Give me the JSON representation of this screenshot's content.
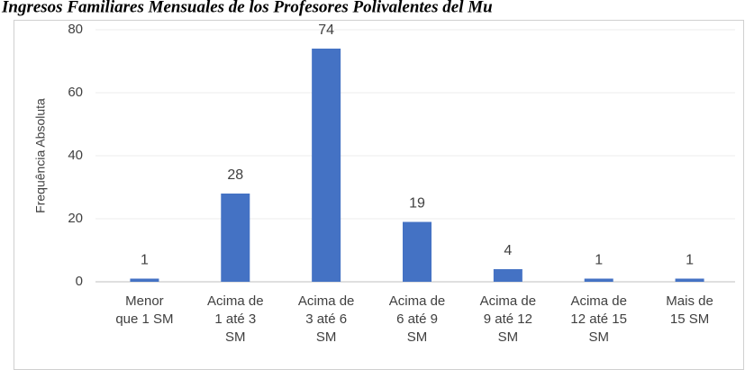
{
  "chart_data": {
    "type": "bar",
    "title": "Ingresos Familiares Mensuales de los Profesores Polivalentes del Mu",
    "ylabel": "Frequência Absoluta",
    "categories": [
      "Menor\nque 1 SM",
      "Acima de\n1 até 3\nSM",
      "Acima de\n3 até 6\nSM",
      "Acima de\n6 até 9\nSM",
      "Acima de\n9 até 12\nSM",
      "Acima de\n12 até 15\nSM",
      "Mais de\n15 SM"
    ],
    "values": [
      1,
      28,
      74,
      19,
      4,
      1,
      1
    ],
    "color": "#4472c4",
    "ylim": [
      0,
      80
    ],
    "yticks": [
      0,
      20,
      40,
      60,
      80
    ],
    "grid": true
  }
}
